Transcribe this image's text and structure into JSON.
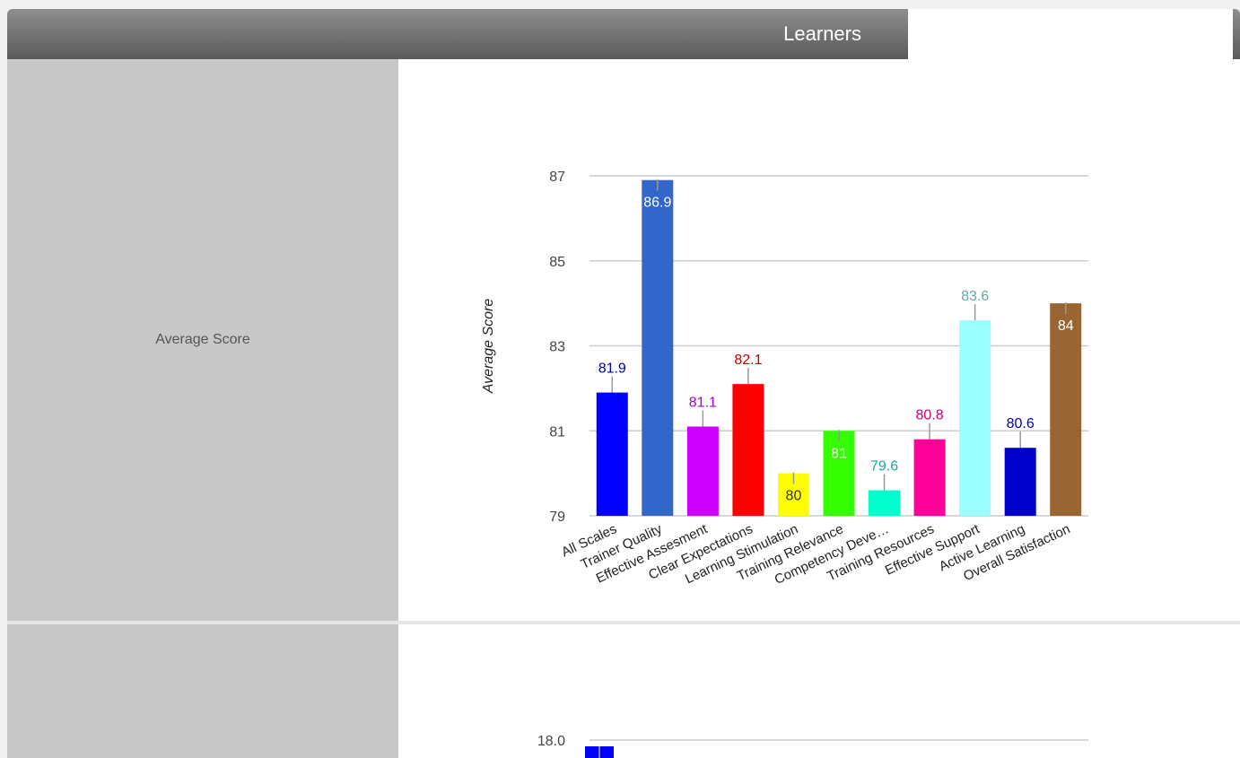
{
  "header": {
    "title": "Learners"
  },
  "rows": [
    {
      "label": "Average Score"
    },
    {
      "label": ""
    }
  ],
  "chart_data": [
    {
      "type": "bar",
      "title": "",
      "xlabel": "",
      "ylabel": "Average Score",
      "ylim": [
        79,
        87
      ],
      "yticks": [
        79,
        81,
        83,
        85,
        87
      ],
      "grid": true,
      "categories": [
        "All Scales",
        "Trainer Quality",
        "Effective Assesment",
        "Clear Expectations",
        "Learning Stimulation",
        "Training Relevance",
        "Competency Deve…",
        "Training Resources",
        "Effective Support",
        "Active Learning",
        "Overall Satisfaction"
      ],
      "values": [
        81.9,
        86.9,
        81.1,
        82.1,
        80,
        81,
        79.6,
        80.8,
        83.6,
        80.6,
        84
      ],
      "colors": [
        "#0000ff",
        "#3366cc",
        "#cc00ff",
        "#ff0000",
        "#ffff00",
        "#33ff00",
        "#00ffcc",
        "#ff0099",
        "#99ffff",
        "#0000cc",
        "#996633"
      ],
      "label_colors": [
        "#0000aa",
        "#ffffff",
        "#aa00cc",
        "#cc0000",
        "#333333",
        "#ffffff",
        "#11aa99",
        "#cc0077",
        "#66aaaa",
        "#0000aa",
        "#ffffff"
      ],
      "label_inside": [
        false,
        true,
        false,
        false,
        true,
        true,
        false,
        false,
        false,
        false,
        true
      ]
    },
    {
      "type": "bar",
      "ylabel": "",
      "yticks_text": [
        "18.0"
      ],
      "partial": true,
      "series_color": "#0000ff"
    }
  ]
}
